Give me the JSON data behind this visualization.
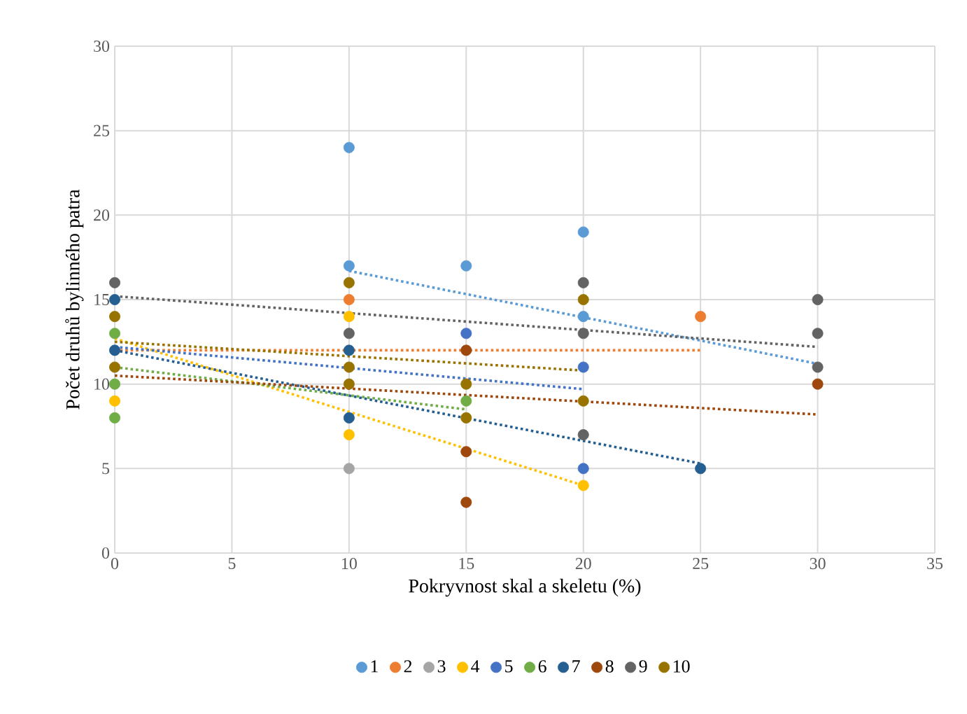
{
  "chart_data": {
    "type": "scatter",
    "xlabel": "Pokryvnost skal a skeletu (%)",
    "ylabel": "Počet druhů bylinného patra",
    "xlim": [
      0,
      35
    ],
    "ylim": [
      0,
      30
    ],
    "xticks": [
      0,
      5,
      10,
      15,
      20,
      25,
      30,
      35
    ],
    "yticks": [
      0,
      5,
      10,
      15,
      20,
      25,
      30
    ],
    "grid": true,
    "legend": "bottom",
    "series": [
      {
        "name": "1",
        "marker": "circle",
        "color": "#5b9bd5",
        "x": [
          10,
          10,
          15,
          20,
          20
        ],
        "values": [
          24,
          17,
          17,
          19,
          14
        ]
      },
      {
        "name": "2",
        "marker": "circle",
        "color": "#ed7d31",
        "x": [
          10,
          25
        ],
        "values": [
          15,
          14
        ]
      },
      {
        "name": "3",
        "marker": "circle",
        "color": "#a5a5a5",
        "x": [
          10
        ],
        "values": [
          5
        ]
      },
      {
        "name": "4",
        "marker": "circle",
        "color": "#ffc000",
        "x": [
          0,
          10,
          10,
          20
        ],
        "values": [
          9,
          14,
          7,
          4
        ]
      },
      {
        "name": "5",
        "marker": "circle",
        "color": "#4472c4",
        "x": [
          15,
          20,
          20
        ],
        "values": [
          13,
          11,
          5
        ]
      },
      {
        "name": "6",
        "marker": "circle",
        "color": "#70ad47",
        "x": [
          0,
          0,
          0,
          15
        ],
        "values": [
          13,
          10,
          8,
          9
        ]
      },
      {
        "name": "7",
        "marker": "circle",
        "color": "#255e91",
        "x": [
          0,
          0,
          10,
          10,
          25
        ],
        "values": [
          15,
          12,
          12,
          8,
          5
        ]
      },
      {
        "name": "8",
        "marker": "circle",
        "color": "#9e480e",
        "x": [
          15,
          15,
          15,
          30
        ],
        "values": [
          12,
          6,
          3,
          10
        ]
      },
      {
        "name": "9",
        "marker": "circle",
        "color": "#636363",
        "x": [
          0,
          10,
          20,
          20,
          20,
          30,
          30,
          30
        ],
        "values": [
          16,
          13,
          16,
          13,
          7,
          15,
          13,
          11
        ]
      },
      {
        "name": "10",
        "marker": "circle",
        "color": "#997300",
        "x": [
          0,
          0,
          10,
          10,
          10,
          15,
          15,
          20,
          20
        ],
        "values": [
          14,
          11,
          16,
          11,
          10,
          10,
          8,
          15,
          9
        ]
      },
      {
        "type": "line",
        "line_style": "dotted",
        "color": "#5b9bd5",
        "x": [
          10,
          30
        ],
        "values": [
          16.7,
          11.2
        ]
      },
      {
        "type": "line",
        "line_style": "dotted",
        "color": "#ed7d31",
        "x": [
          0,
          25
        ],
        "values": [
          12,
          12
        ]
      },
      {
        "type": "line",
        "line_style": "dotted",
        "color": "#ffc000",
        "x": [
          0,
          20
        ],
        "values": [
          12.7,
          4
        ]
      },
      {
        "type": "line",
        "line_style": "dotted",
        "color": "#4472c4",
        "x": [
          0,
          20
        ],
        "values": [
          12.2,
          9.7
        ]
      },
      {
        "type": "line",
        "line_style": "dotted",
        "color": "#70ad47",
        "x": [
          0,
          15
        ],
        "values": [
          11,
          8.5
        ]
      },
      {
        "type": "line",
        "line_style": "dotted",
        "color": "#255e91",
        "x": [
          0,
          25
        ],
        "values": [
          12,
          5.3
        ]
      },
      {
        "type": "line",
        "line_style": "dotted",
        "color": "#9e480e",
        "x": [
          0,
          30
        ],
        "values": [
          10.5,
          8.2
        ]
      },
      {
        "type": "line",
        "line_style": "dotted",
        "color": "#636363",
        "x": [
          0,
          30
        ],
        "values": [
          15.2,
          12.2
        ]
      },
      {
        "type": "line",
        "line_style": "dotted",
        "color": "#997300",
        "x": [
          0,
          20
        ],
        "values": [
          12.5,
          10.8
        ]
      }
    ]
  }
}
